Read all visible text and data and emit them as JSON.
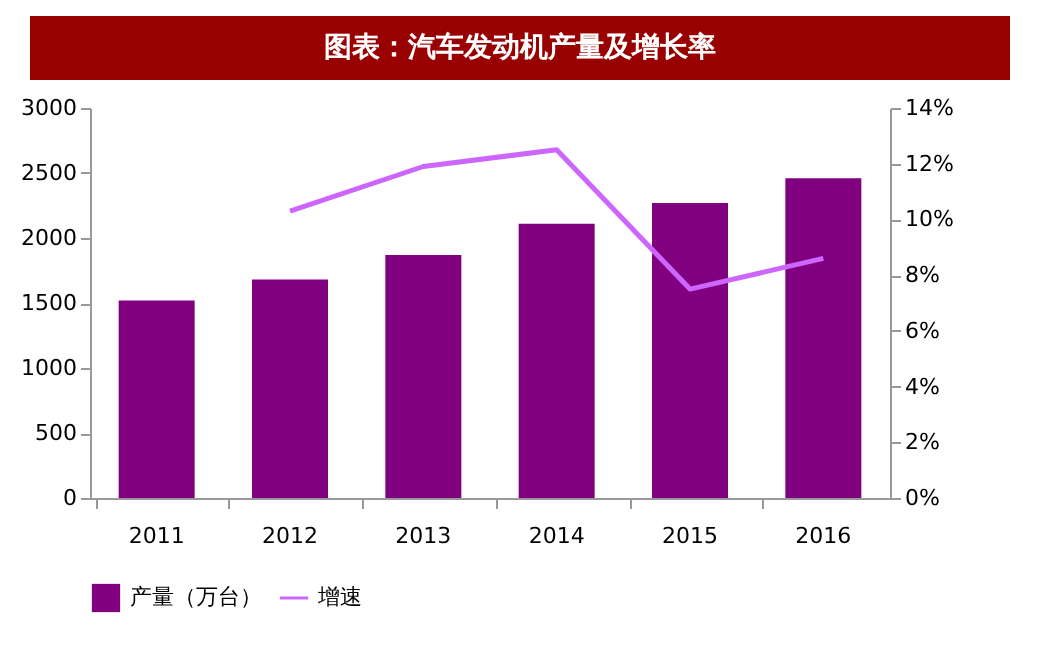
{
  "chart_data": {
    "type": "bar",
    "title": "图表：汽车发动机产量及增长率",
    "categories": [
      "2011",
      "2012",
      "2013",
      "2014",
      "2015",
      "2016"
    ],
    "series": [
      {
        "name": "产量（万台）",
        "color": "#800080",
        "values": [
          1520,
          1680,
          1870,
          2110,
          2270,
          2460
        ]
      },
      {
        "name": "增速",
        "color": "#cc66ff",
        "type": "line",
        "axis": "y2",
        "values": [
          null,
          10.3,
          11.9,
          12.5,
          7.5,
          8.6
        ]
      }
    ],
    "ylim": [
      0,
      3000
    ],
    "yticks": [
      0,
      500,
      1000,
      1500,
      2000,
      2500,
      3000
    ],
    "y2lim": [
      0,
      14
    ],
    "y2ticks": [
      {
        "value": 0,
        "label": "0%"
      },
      {
        "value": 2,
        "label": "2%"
      },
      {
        "value": 4,
        "label": "4%"
      },
      {
        "value": 6,
        "label": "6%"
      },
      {
        "value": 8,
        "label": "8%"
      },
      {
        "value": 10,
        "label": "10%"
      },
      {
        "value": 12,
        "label": "12%"
      },
      {
        "value": 14,
        "label": "14%"
      }
    ],
    "grid": false,
    "legend": "bottom",
    "marker": "none",
    "line_style": "solid"
  }
}
